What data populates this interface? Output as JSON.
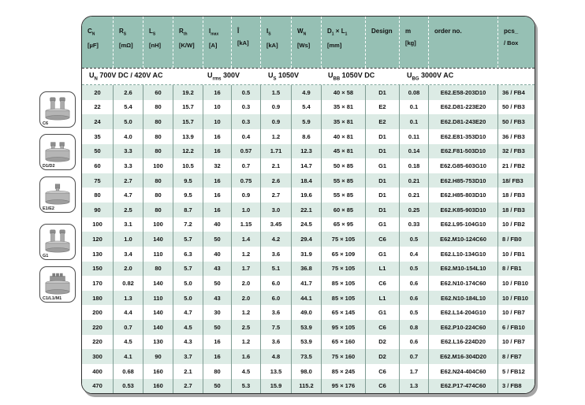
{
  "colors": {
    "header_teal": "#96c0b4",
    "row_tint": "#dcebe5",
    "separator": "#7f9c93",
    "table_border": "#2e2e2e",
    "shadow_gray": "#a6a6a6"
  },
  "table": {
    "columns": [
      {
        "symbol": [
          {
            "t": "C"
          },
          {
            "s": "N"
          }
        ],
        "unit": "[µF]"
      },
      {
        "symbol": [
          {
            "t": "R"
          },
          {
            "s": "S"
          }
        ],
        "unit": "[mΩ]"
      },
      {
        "symbol": [
          {
            "t": "L"
          },
          {
            "s": "S"
          }
        ],
        "unit": "[nH]"
      },
      {
        "symbol": [
          {
            "t": "R"
          },
          {
            "s": "th"
          }
        ],
        "unit": "[K/W]"
      },
      {
        "symbol": [
          {
            "t": "I"
          },
          {
            "s": "max"
          }
        ],
        "unit": "[A]"
      },
      {
        "symbol": [
          {
            "t": "Î"
          }
        ],
        "unit": "[kA]"
      },
      {
        "symbol": [
          {
            "t": "I"
          },
          {
            "s": "S"
          }
        ],
        "unit": "[kA]"
      },
      {
        "symbol": [
          {
            "t": "W"
          },
          {
            "s": "N"
          }
        ],
        "unit": "[Ws]"
      },
      {
        "symbol": [
          {
            "t": "D"
          },
          {
            "s": "1"
          },
          {
            "t": " × "
          },
          {
            "t": "L"
          },
          {
            "s": "1"
          }
        ],
        "unit": "[mm]"
      },
      {
        "symbol": [
          {
            "t": "Design"
          }
        ],
        "unit": ""
      },
      {
        "symbol": [
          {
            "t": "m"
          }
        ],
        "unit": "[kg]"
      },
      {
        "symbol": [
          {
            "t": "order no."
          }
        ],
        "unit": ""
      },
      {
        "symbol": [
          {
            "t": "pcs_"
          }
        ],
        "unit": "/ Box"
      }
    ],
    "voltage_specs": [
      {
        "segments": [
          {
            "t": "U"
          },
          {
            "s": "N"
          },
          {
            "t": " 700V DC / 420V AC"
          }
        ]
      },
      {
        "segments": [
          {
            "t": "U"
          },
          {
            "s": "rms"
          },
          {
            "t": " 300V"
          }
        ]
      },
      {
        "segments": [
          {
            "t": "U"
          },
          {
            "s": "S"
          },
          {
            "t": " 1050V"
          }
        ]
      },
      {
        "segments": [
          {
            "t": "U"
          },
          {
            "s": "BB"
          },
          {
            "t": " 1050V DC"
          }
        ]
      },
      {
        "segments": [
          {
            "t": "U"
          },
          {
            "s": "BG"
          },
          {
            "t": " 3000V AC"
          }
        ]
      }
    ],
    "rows": [
      [
        "20",
        "2.6",
        "60",
        "19.2",
        "16",
        "0.5",
        "1.5",
        "4.9",
        "40 × 58",
        "D1",
        "0.08",
        "E62.E58-203D10",
        "36 / FB4"
      ],
      [
        "22",
        "5.4",
        "80",
        "15.7",
        "10",
        "0.3",
        "0.9",
        "5.4",
        "35 × 81",
        "E2",
        "0.1",
        "E62.D81-223E20",
        "50 / FB3"
      ],
      [
        "24",
        "5.0",
        "80",
        "15.7",
        "10",
        "0.3",
        "0.9",
        "5.9",
        "35 × 81",
        "E2",
        "0.1",
        "E62.D81-243E20",
        "50 / FB3"
      ],
      [
        "35",
        "4.0",
        "80",
        "13.9",
        "16",
        "0.4",
        "1.2",
        "8.6",
        "40 × 81",
        "D1",
        "0.11",
        "E62.E81-353D10",
        "36 / FB3"
      ],
      [
        "50",
        "3.3",
        "80",
        "12.2",
        "16",
        "0.57",
        "1.71",
        "12.3",
        "45 × 81",
        "D1",
        "0.14",
        "E62.F81-503D10",
        "32 / FB3"
      ],
      [
        "60",
        "3.3",
        "100",
        "10.5",
        "32",
        "0.7",
        "2.1",
        "14.7",
        "50 × 85",
        "G1",
        "0.18",
        "E62.G85-603G10",
        "21 / FB2"
      ],
      [
        "75",
        "2.7",
        "80",
        "9.5",
        "16",
        "0.75",
        "2.6",
        "18.4",
        "55 × 85",
        "D1",
        "0.21",
        "E62.H85-753D10",
        "18/ FB3"
      ],
      [
        "80",
        "4.7",
        "80",
        "9.5",
        "16",
        "0.9",
        "2.7",
        "19.6",
        "55 × 85",
        "D1",
        "0.21",
        "E62.H85-803D10",
        "18 / FB3"
      ],
      [
        "90",
        "2.5",
        "80",
        "8.7",
        "16",
        "1.0",
        "3.0",
        "22.1",
        "60 × 85",
        "D1",
        "0.25",
        "E62.K85-903D10",
        "18 / FB3"
      ],
      [
        "100",
        "3.1",
        "100",
        "7.2",
        "40",
        "1.15",
        "3.45",
        "24.5",
        "65 × 95",
        "G1",
        "0.33",
        "E62.L95-104G10",
        "10 / FB2"
      ],
      [
        "120",
        "1.0",
        "140",
        "5.7",
        "50",
        "1.4",
        "4.2",
        "29.4",
        "75 × 105",
        "C6",
        "0.5",
        "E62.M10-124C60",
        "8 / FB0"
      ],
      [
        "130",
        "3.4",
        "110",
        "6.3",
        "40",
        "1.2",
        "3.6",
        "31.9",
        "65 × 109",
        "G1",
        "0.4",
        "E62.L10-134G10",
        "10 / FB1"
      ],
      [
        "150",
        "2.0",
        "80",
        "5.7",
        "43",
        "1.7",
        "5.1",
        "36.8",
        "75 × 105",
        "L1",
        "0.5",
        "E62.M10-154L10",
        "8 / FB1"
      ],
      [
        "170",
        "0.82",
        "140",
        "5.0",
        "50",
        "2.0",
        "6.0",
        "41.7",
        "85 × 105",
        "C6",
        "0.6",
        "E62.N10-174C60",
        "10 / FB10"
      ],
      [
        "180",
        "1.3",
        "110",
        "5.0",
        "43",
        "2.0",
        "6.0",
        "44.1",
        "85 × 105",
        "L1",
        "0.6",
        "E62.N10-184L10",
        "10 / FB10"
      ],
      [
        "200",
        "4.4",
        "140",
        "4.7",
        "30",
        "1.2",
        "3.6",
        "49.0",
        "65 × 145",
        "G1",
        "0.5",
        "E62.L14-204G10",
        "10 / FB7"
      ],
      [
        "220",
        "0.7",
        "140",
        "4.5",
        "50",
        "2.5",
        "7.5",
        "53.9",
        "95 × 105",
        "C6",
        "0.8",
        "E62.P10-224C60",
        "6 / FB10"
      ],
      [
        "220",
        "4.5",
        "130",
        "4.3",
        "16",
        "1.2",
        "3.6",
        "53.9",
        "65 × 160",
        "D2",
        "0.6",
        "E62.L16-224D20",
        "10 / FB7"
      ],
      [
        "300",
        "4.1",
        "90",
        "3.7",
        "16",
        "1.6",
        "4.8",
        "73.5",
        "75 × 160",
        "D2",
        "0.7",
        "E62.M16-304D20",
        "8 / FB7"
      ],
      [
        "400",
        "0.68",
        "160",
        "2.1",
        "80",
        "4.5",
        "13.5",
        "98.0",
        "85 × 245",
        "C6",
        "1.7",
        "E62.N24-404C60",
        "5 / FB12"
      ],
      [
        "470",
        "0.53",
        "160",
        "2.7",
        "50",
        "5.3",
        "15.9",
        "115.2",
        "95 × 176",
        "C6",
        "1.3",
        "E62.P17-474C60",
        "3 / FB8"
      ]
    ]
  },
  "sidebar": {
    "designs": [
      {
        "label": "C6",
        "icon": "capacitor-two-stud-tall-icon"
      },
      {
        "label": "D1/D2",
        "icon": "capacitor-two-stud-short-icon"
      },
      {
        "label": "E1/E2",
        "icon": "capacitor-single-stud-icon"
      },
      {
        "label": "G1",
        "icon": "capacitor-two-stud-tall-icon"
      },
      {
        "label": "C1/L1/M1",
        "icon": "capacitor-triple-terminal-icon"
      }
    ]
  }
}
